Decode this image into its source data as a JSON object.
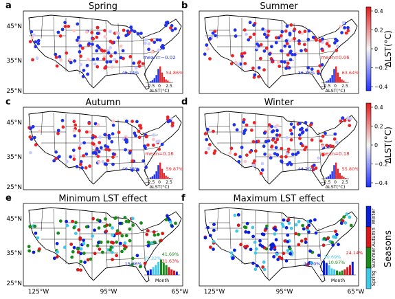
{
  "panels": [
    {
      "letter": "a",
      "title": "Spring",
      "mean": "mean=−0.02",
      "neg_pct": "45.14%",
      "pos_pct": "54.86%",
      "hist_ticks": [
        "−2.5",
        "0",
        "2.5"
      ],
      "hist_label": "ΔLST(°C)"
    },
    {
      "letter": "b",
      "title": "Summer",
      "mean": "mean=0.06",
      "neg_pct": "36.36%",
      "pos_pct": "63.64%",
      "hist_ticks": [
        "−2.5",
        "0",
        "2.5"
      ],
      "hist_label": "ΔLST(°C)"
    },
    {
      "letter": "c",
      "title": "Autumn",
      "mean": "mean=0.16",
      "neg_pct": "40.13%",
      "pos_pct": "59.87%",
      "hist_ticks": [
        "−2.5",
        "0",
        "2.5"
      ],
      "hist_label": "ΔLST(°C)"
    },
    {
      "letter": "d",
      "title": "Winter",
      "mean": "mean=0.18",
      "neg_pct": "44.20%",
      "pos_pct": "55.80%",
      "hist_ticks": [
        "−2.5",
        "0",
        "2.5"
      ],
      "hist_label": "ΔLST(°C)"
    },
    {
      "letter": "e",
      "title": "Minimum LST effect",
      "pcts": [
        "15.36%",
        "21.32%",
        "41.69%",
        "21.63%"
      ],
      "hist_label": "Month"
    },
    {
      "letter": "f",
      "title": "Maximum LST effect",
      "pcts": [
        "44.20%",
        "20.69%",
        "10.97%",
        "24.14%"
      ],
      "hist_label": "Month"
    }
  ],
  "lat_labels": [
    "45°N",
    "35°N",
    "25°N"
  ],
  "lon_labels": [
    "125°W",
    "95°W",
    "65°W"
  ],
  "colorbar": {
    "label": "ΔLST(°C)",
    "ticks": [
      "0.4",
      "0.2",
      "0",
      "−0.2",
      "−0.4"
    ],
    "colors": {
      "low": "#1f2fff",
      "mid": "#f2f2f2",
      "high": "#e31a1c"
    }
  },
  "season_bar": {
    "label": "Seasons",
    "items": [
      "Winter",
      "Autumn",
      "Summer",
      "Spring"
    ],
    "colors": {
      "Winter": "#0a1fd6",
      "Autumn": "#d7191c",
      "Summer": "#1a8a1a",
      "Spring": "#41c7e8"
    }
  },
  "colors": {
    "pos": "#e8262a",
    "neg": "#2233e6",
    "winter": "#0a1fd6",
    "autumn": "#d7191c",
    "summer": "#1a8a1a",
    "spring": "#41c7e8"
  }
}
